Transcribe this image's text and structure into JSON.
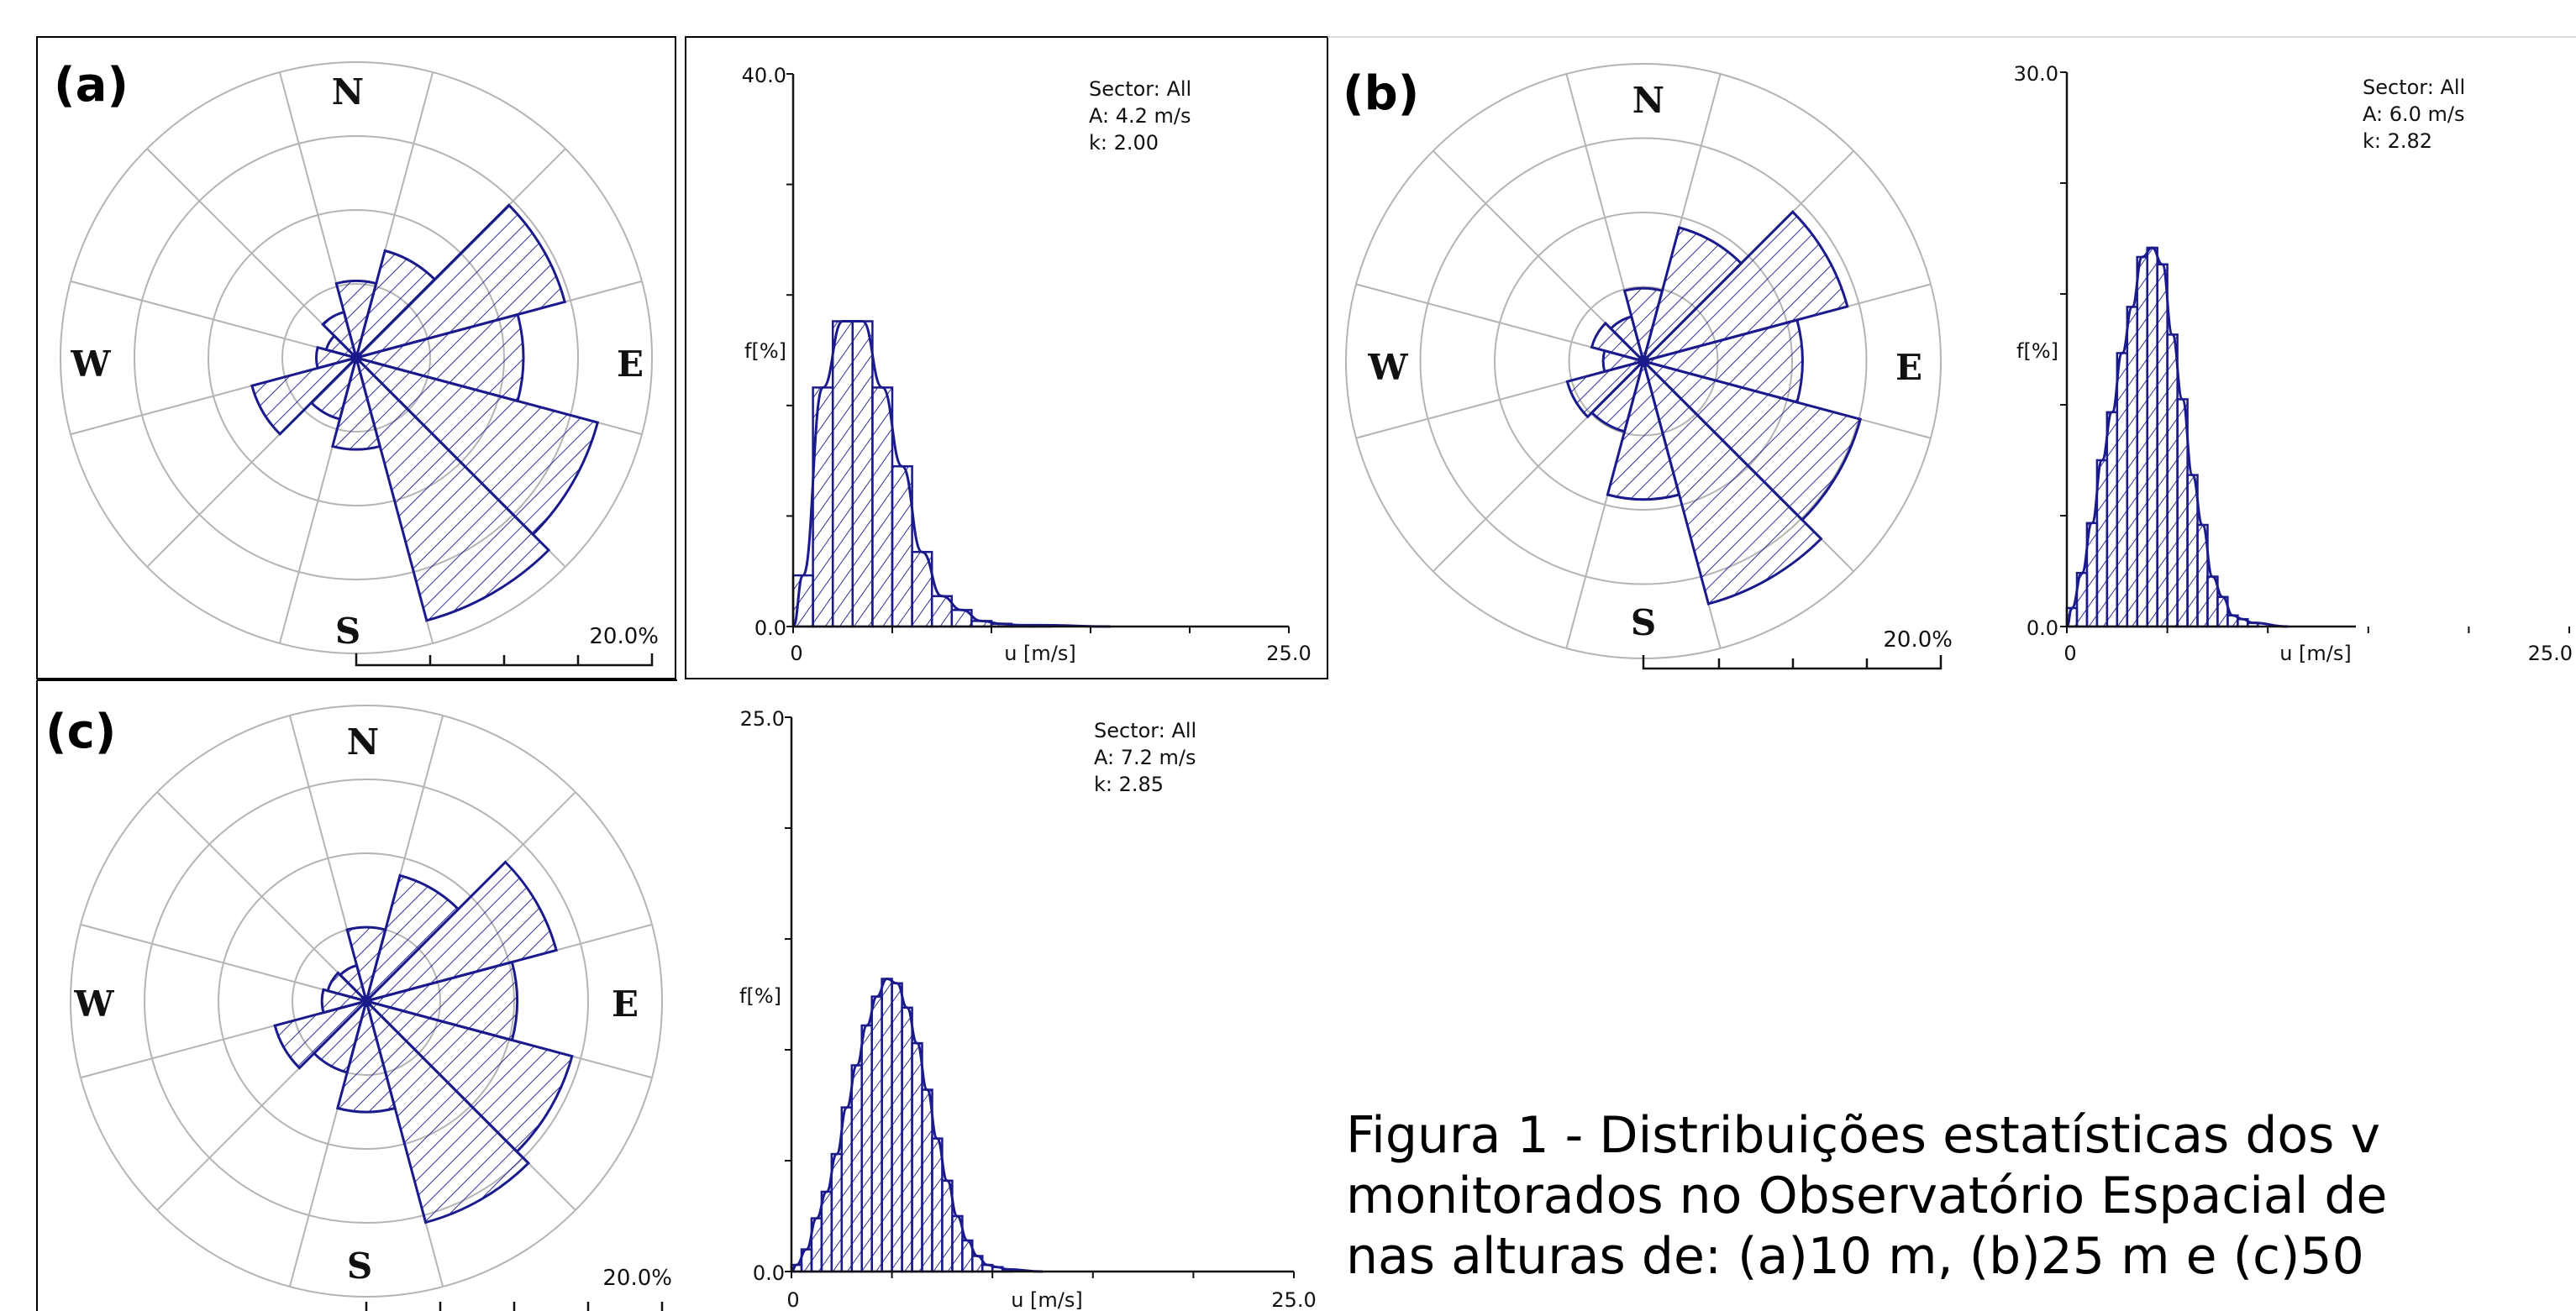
{
  "caption": {
    "line1": "Figura 1 - Distribuições estatísticas dos v",
    "line2": "monitorados no Observatório Espacial de",
    "line3": "nas alturas de: (a)10 m, (b)25 m e (c)50"
  },
  "chart_data": [
    {
      "panel": "(a)",
      "compass": {
        "n": "N",
        "e": "E",
        "s": "S",
        "w": "W"
      },
      "rose": {
        "type": "polar-bar",
        "sectors": 12,
        "scale_label": "20.0%",
        "sector_frequency_pct": [
          5.2,
          7.5,
          14.6,
          11.3,
          16.9,
          18.4,
          6.2,
          4.3,
          7.3,
          2.7,
          2.1,
          3.2
        ]
      },
      "histogram": {
        "type": "bar",
        "info": {
          "sector": "Sector: All",
          "A": "A: 4.2 m/s",
          "k": "k: 2.00"
        },
        "xlabel": "u [m/s]",
        "ylabel": "f[%]",
        "xlim": [
          0,
          25
        ],
        "ylim": [
          0,
          40
        ],
        "x_tick_labels": [
          "0",
          "25.0"
        ],
        "y_tick_labels": [
          "0.0",
          "40.0"
        ],
        "bin_width_mps": 1,
        "values": [
          3.7,
          17.3,
          22.1,
          22.1,
          17.3,
          11.6,
          5.4,
          2.2,
          1.2,
          0.4,
          0.2,
          0.1,
          0.1
        ]
      }
    },
    {
      "panel": "(b)",
      "compass": {
        "n": "N",
        "e": "E",
        "s": "S",
        "w": "W"
      },
      "rose": {
        "type": "polar-bar",
        "sectors": 12,
        "scale_label": "20.0%",
        "sector_frequency_pct": [
          4.9,
          9.3,
          14.2,
          10.7,
          15.1,
          16.9,
          9.3,
          4.9,
          5.3,
          2.7,
          3.6,
          3.1
        ]
      },
      "histogram": {
        "type": "bar",
        "info": {
          "sector": "Sector: All",
          "A": "A: 6.0 m/s",
          "k": "k: 2.82"
        },
        "xlabel": "u [m/s]",
        "ylabel": "f[%]",
        "xlim": [
          0,
          25
        ],
        "ylim": [
          0,
          30
        ],
        "x_tick_labels": [
          "0",
          "25.0"
        ],
        "y_tick_labels": [
          "0.0",
          "30.0"
        ],
        "bin_width_mps": 0.5,
        "values": [
          1.0,
          2.9,
          5.6,
          9.0,
          11.6,
          14.8,
          17.3,
          20.0,
          20.5,
          19.6,
          15.8,
          12.3,
          8.2,
          5.5,
          2.7,
          1.6,
          0.6,
          0.4,
          0.2
        ]
      }
    },
    {
      "panel": "(c)",
      "compass": {
        "n": "N",
        "e": "E",
        "s": "S",
        "w": "W"
      },
      "rose": {
        "type": "polar-bar",
        "sectors": 12,
        "scale_label": "20.0%",
        "sector_frequency_pct": [
          5.0,
          8.8,
          13.3,
          10.2,
          14.4,
          15.5,
          7.5,
          5.0,
          6.4,
          3.0,
          2.7,
          2.5
        ]
      },
      "histogram": {
        "type": "bar",
        "info": {
          "sector": "Sector: All",
          "A": "A: 7.2 m/s",
          "k": "k: 2.85"
        },
        "xlabel": "u [m/s]",
        "ylabel": "f[%]",
        "xlim": [
          0,
          25
        ],
        "ylim": [
          0,
          25
        ],
        "x_tick_labels": [
          "0",
          "25.0"
        ],
        "y_tick_labels": [
          "0.0",
          "25.0"
        ],
        "bin_width_mps": 0.5,
        "values": [
          0.3,
          1.0,
          2.4,
          3.6,
          5.3,
          7.4,
          9.3,
          11.1,
          12.4,
          13.2,
          13.0,
          11.9,
          10.3,
          8.2,
          6.0,
          4.1,
          2.5,
          1.4,
          0.7,
          0.3,
          0.2,
          0.1
        ]
      }
    }
  ]
}
